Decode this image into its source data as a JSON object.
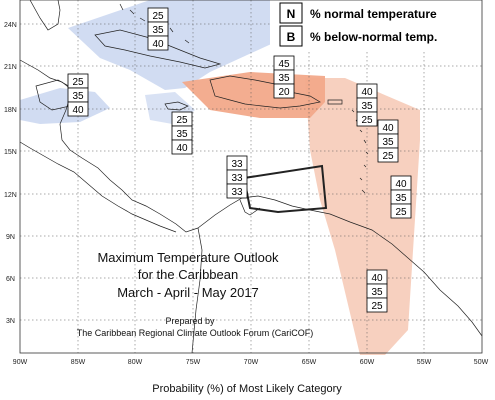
{
  "legend": {
    "items": [
      {
        "key": "N",
        "label": "% normal temperature"
      },
      {
        "key": "B",
        "label": "% below-normal temp."
      }
    ]
  },
  "title": {
    "line1": "Maximum Temperature Outlook",
    "line2": "for the Caribbean",
    "line3": "March - April - May 2017",
    "prepared_by": "Prepared by",
    "org": "The Caribbean Regional Climate Outlook Forum (CariCOF)"
  },
  "caption": "Probability (%) of Most Likely Category",
  "axes": {
    "lon_labels": [
      "90W",
      "85W",
      "80W",
      "75W",
      "70W",
      "65W",
      "60W",
      "55W",
      "50W"
    ],
    "lat_labels": [
      "24N",
      "21N",
      "18N",
      "15N",
      "12N",
      "9N",
      "6N",
      "3N"
    ]
  },
  "colors": {
    "normal_zone": "#c9d6f0",
    "above_zone": "#f2a98a",
    "light_above_zone": "#f6c8b4"
  },
  "regions": [
    {
      "name": "bahamas",
      "values": [
        "25",
        "35",
        "40"
      ]
    },
    {
      "name": "yucatan",
      "values": [
        "25",
        "35",
        "40"
      ]
    },
    {
      "name": "hispaniola",
      "values": [
        "45",
        "35",
        "20"
      ]
    },
    {
      "name": "jamaica",
      "values": [
        "25",
        "35",
        "40"
      ]
    },
    {
      "name": "lesser-antilles-north",
      "values": [
        "40",
        "35",
        "25"
      ]
    },
    {
      "name": "lesser-antilles-central",
      "values": [
        "40",
        "35",
        "25"
      ]
    },
    {
      "name": "lesser-antilles-south",
      "values": [
        "40",
        "35",
        "25"
      ]
    },
    {
      "name": "abc-islands",
      "values": [
        "33",
        "33",
        "33"
      ]
    },
    {
      "name": "guianas",
      "values": [
        "40",
        "35",
        "25"
      ]
    }
  ]
}
